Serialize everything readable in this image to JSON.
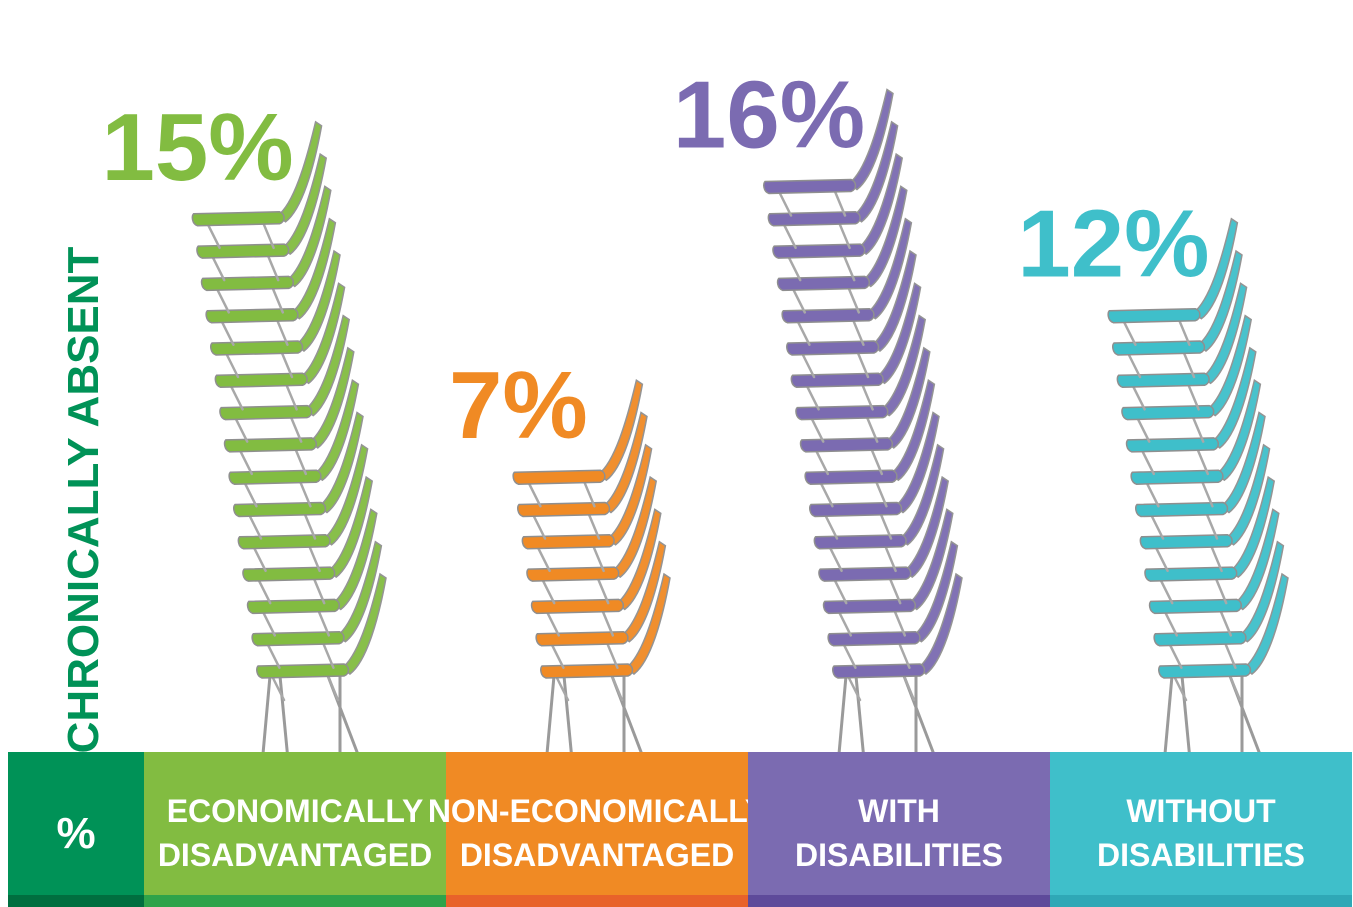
{
  "chart_data": {
    "type": "bar",
    "ylabel": "CHRONICALLY ABSENT",
    "unit_label": "%",
    "categories": [
      [
        "ECONOMICALLY",
        "DISADVANTAGED"
      ],
      [
        "NON-ECONOMICALLY",
        "DISADVANTAGED"
      ],
      [
        "WITH",
        "DISABILITIES"
      ],
      [
        "WITHOUT",
        "DISABILITIES"
      ]
    ],
    "values": [
      15,
      7,
      16,
      12
    ],
    "value_labels": [
      "15%",
      "7%",
      "16%",
      "12%"
    ],
    "colors": [
      "#82bc41",
      "#f08a24",
      "#7b6bb1",
      "#3fbfca"
    ],
    "dark_colors": [
      "#2ea34a",
      "#e8622a",
      "#5e4a9a",
      "#2fa8b6"
    ],
    "unit_color": "#009257",
    "unit_dark_color": "#006e3f",
    "ylabel_color": "#009257",
    "bars_rendered_as": "stacked chairs"
  }
}
